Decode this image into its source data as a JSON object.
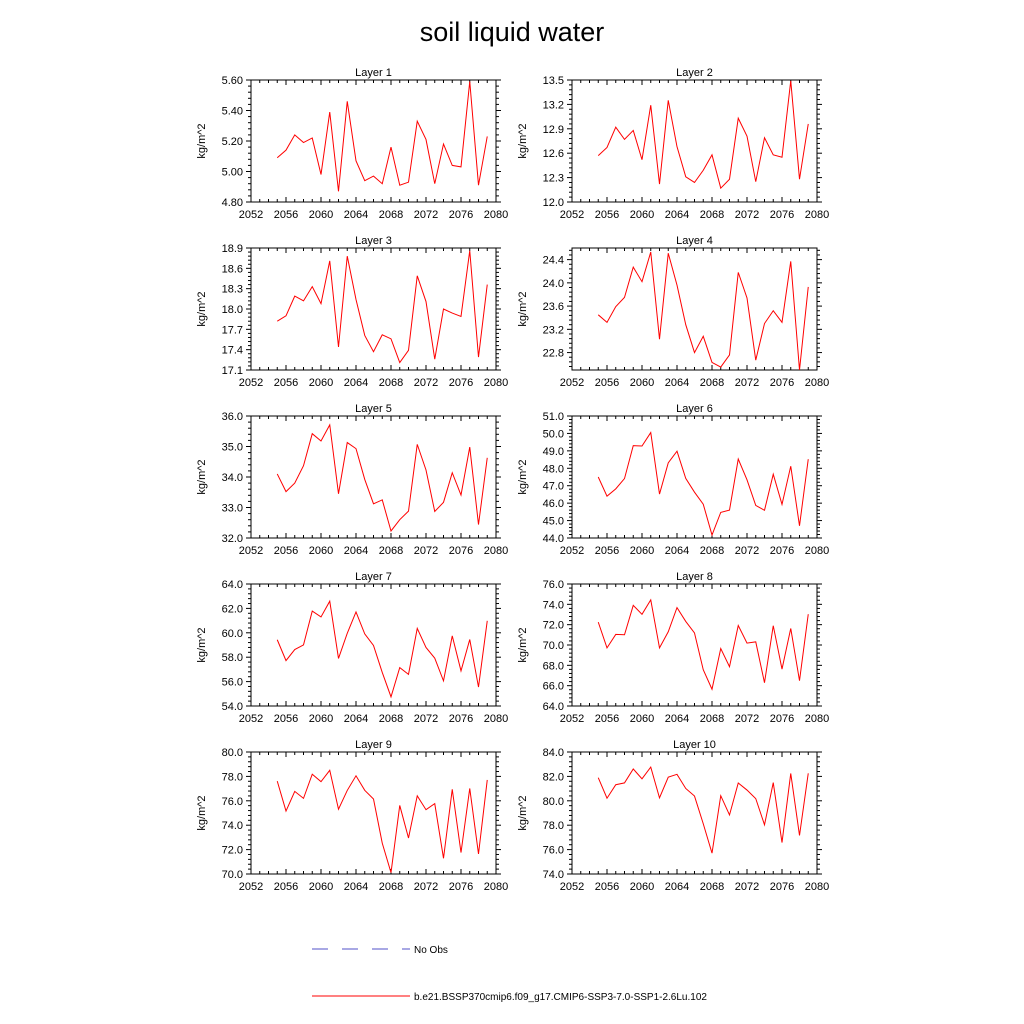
{
  "title": "soil liquid water",
  "legend": {
    "position": "bottom",
    "entries": [
      {
        "label": "No Obs",
        "color": "#5050c8",
        "style": "dashed"
      },
      {
        "label": "b.e21.BSSP370cmip6.f09_g17.CMIP6-SSP3-7.0-SSP1-2.6Lu.102",
        "color": "#ff0000",
        "style": "solid"
      }
    ]
  },
  "colors": {
    "series": "#ff0000",
    "axis": "#000000"
  },
  "chart_data": [
    {
      "type": "line",
      "title": "Layer 1",
      "ylabel": "kg/m^2",
      "xlim": [
        2052,
        2080
      ],
      "ylim": [
        4.8,
        5.6
      ],
      "xticks": [
        "2052",
        "2056",
        "2060",
        "2064",
        "2068",
        "2072",
        "2076",
        "2080"
      ],
      "yticks": [
        "4.80",
        "5.00",
        "5.20",
        "5.40",
        "5.60"
      ],
      "series": [
        {
          "x": [
            2055,
            2056,
            2057,
            2058,
            2059,
            2060,
            2061,
            2062,
            2063,
            2064,
            2065,
            2066,
            2067,
            2068,
            2069,
            2070,
            2071,
            2072,
            2073,
            2074,
            2075,
            2076,
            2077,
            2078,
            2079
          ],
          "y": [
            5.09,
            5.14,
            5.24,
            5.19,
            5.22,
            4.98,
            5.39,
            4.87,
            5.46,
            5.07,
            4.94,
            4.97,
            4.92,
            5.16,
            4.91,
            4.93,
            5.33,
            5.21,
            4.92,
            5.18,
            5.04,
            5.03,
            5.59,
            4.91,
            5.23
          ]
        }
      ]
    },
    {
      "type": "line",
      "title": "Layer 2",
      "ylabel": "kg/m^2",
      "xlim": [
        2052,
        2080
      ],
      "ylim": [
        12.0,
        13.5
      ],
      "xticks": [
        "2052",
        "2056",
        "2060",
        "2064",
        "2068",
        "2072",
        "2076",
        "2080"
      ],
      "yticks": [
        "12.0",
        "12.3",
        "12.6",
        "12.9",
        "13.2",
        "13.5"
      ],
      "series": [
        {
          "x": [
            2055,
            2056,
            2057,
            2058,
            2059,
            2060,
            2061,
            2062,
            2063,
            2064,
            2065,
            2066,
            2067,
            2068,
            2069,
            2070,
            2071,
            2072,
            2073,
            2074,
            2075,
            2076,
            2077,
            2078,
            2079
          ],
          "y": [
            12.57,
            12.67,
            12.92,
            12.77,
            12.88,
            12.52,
            13.19,
            12.22,
            13.25,
            12.68,
            12.31,
            12.24,
            12.39,
            12.58,
            12.17,
            12.28,
            13.03,
            12.81,
            12.25,
            12.79,
            12.58,
            12.55,
            13.49,
            12.28,
            12.96
          ]
        }
      ]
    },
    {
      "type": "line",
      "title": "Layer 3",
      "ylabel": "kg/m^2",
      "xlim": [
        2052,
        2080
      ],
      "ylim": [
        17.1,
        18.9
      ],
      "xticks": [
        "2052",
        "2056",
        "2060",
        "2064",
        "2068",
        "2072",
        "2076",
        "2080"
      ],
      "yticks": [
        "17.1",
        "17.4",
        "17.7",
        "18.0",
        "18.3",
        "18.6",
        "18.9"
      ],
      "series": [
        {
          "x": [
            2055,
            2056,
            2057,
            2058,
            2059,
            2060,
            2061,
            2062,
            2063,
            2064,
            2065,
            2066,
            2067,
            2068,
            2069,
            2070,
            2071,
            2072,
            2073,
            2074,
            2075,
            2076,
            2077,
            2078,
            2079
          ],
          "y": [
            17.82,
            17.9,
            18.19,
            18.12,
            18.33,
            18.08,
            18.71,
            17.44,
            18.78,
            18.14,
            17.61,
            17.37,
            17.62,
            17.56,
            17.21,
            17.39,
            18.49,
            18.11,
            17.26,
            18.0,
            17.94,
            17.89,
            18.86,
            17.29,
            18.36
          ]
        }
      ]
    },
    {
      "type": "line",
      "title": "Layer 4",
      "ylabel": "kg/m^2",
      "xlim": [
        2052,
        2080
      ],
      "ylim": [
        22.5,
        24.6
      ],
      "xticks": [
        "2052",
        "2056",
        "2060",
        "2064",
        "2068",
        "2072",
        "2076",
        "2080"
      ],
      "yticks": [
        "22.8",
        "23.2",
        "23.6",
        "24.0",
        "24.4"
      ],
      "series": [
        {
          "x": [
            2055,
            2056,
            2057,
            2058,
            2059,
            2060,
            2061,
            2062,
            2063,
            2064,
            2065,
            2066,
            2067,
            2068,
            2069,
            2070,
            2071,
            2072,
            2073,
            2074,
            2075,
            2076,
            2077,
            2078,
            2079
          ],
          "y": [
            23.45,
            23.32,
            23.59,
            23.75,
            24.27,
            24.02,
            24.53,
            23.03,
            24.51,
            23.96,
            23.28,
            22.8,
            23.08,
            22.63,
            22.55,
            22.76,
            24.18,
            23.74,
            22.67,
            23.3,
            23.52,
            23.32,
            24.37,
            22.5,
            23.93
          ]
        }
      ]
    },
    {
      "type": "line",
      "title": "Layer 5",
      "ylabel": "kg/m^2",
      "xlim": [
        2052,
        2080
      ],
      "ylim": [
        32.0,
        36.0
      ],
      "xticks": [
        "2052",
        "2056",
        "2060",
        "2064",
        "2068",
        "2072",
        "2076",
        "2080"
      ],
      "yticks": [
        "32.0",
        "33.0",
        "34.0",
        "35.0",
        "36.0"
      ],
      "series": [
        {
          "x": [
            2055,
            2056,
            2057,
            2058,
            2059,
            2060,
            2061,
            2062,
            2063,
            2064,
            2065,
            2066,
            2067,
            2068,
            2069,
            2070,
            2071,
            2072,
            2073,
            2074,
            2075,
            2076,
            2077,
            2078,
            2079
          ],
          "y": [
            34.1,
            33.52,
            33.8,
            34.37,
            35.42,
            35.18,
            35.71,
            33.45,
            35.13,
            34.93,
            33.92,
            33.12,
            33.25,
            32.23,
            32.6,
            32.88,
            35.07,
            34.23,
            32.87,
            33.17,
            34.14,
            33.41,
            34.98,
            32.44,
            34.63
          ]
        }
      ]
    },
    {
      "type": "line",
      "title": "Layer 6",
      "ylabel": "kg/m^2",
      "xlim": [
        2052,
        2080
      ],
      "ylim": [
        44.0,
        51.0
      ],
      "xticks": [
        "2052",
        "2056",
        "2060",
        "2064",
        "2068",
        "2072",
        "2076",
        "2080"
      ],
      "yticks": [
        "44.0",
        "45.0",
        "46.0",
        "47.0",
        "48.0",
        "49.0",
        "50.0",
        "51.0"
      ],
      "series": [
        {
          "x": [
            2055,
            2056,
            2057,
            2058,
            2059,
            2060,
            2061,
            2062,
            2063,
            2064,
            2065,
            2066,
            2067,
            2068,
            2069,
            2070,
            2071,
            2072,
            2073,
            2074,
            2075,
            2076,
            2077,
            2078,
            2079
          ],
          "y": [
            47.5,
            46.4,
            46.82,
            47.41,
            49.3,
            49.28,
            50.05,
            46.52,
            48.31,
            48.98,
            47.42,
            46.63,
            45.94,
            44.17,
            45.47,
            45.6,
            48.53,
            47.34,
            45.87,
            45.59,
            47.66,
            45.93,
            48.12,
            44.7,
            48.52
          ]
        }
      ]
    },
    {
      "type": "line",
      "title": "Layer 7",
      "ylabel": "kg/m^2",
      "xlim": [
        2052,
        2080
      ],
      "ylim": [
        54.0,
        64.0
      ],
      "xticks": [
        "2052",
        "2056",
        "2060",
        "2064",
        "2068",
        "2072",
        "2076",
        "2080"
      ],
      "yticks": [
        "54.0",
        "56.0",
        "58.0",
        "60.0",
        "62.0",
        "64.0"
      ],
      "series": [
        {
          "x": [
            2055,
            2056,
            2057,
            2058,
            2059,
            2060,
            2061,
            2062,
            2063,
            2064,
            2065,
            2066,
            2067,
            2068,
            2069,
            2070,
            2071,
            2072,
            2073,
            2074,
            2075,
            2076,
            2077,
            2078,
            2079
          ],
          "y": [
            59.43,
            57.72,
            58.63,
            59.01,
            61.78,
            61.3,
            62.59,
            57.9,
            59.96,
            61.71,
            59.91,
            58.96,
            56.75,
            54.75,
            57.15,
            56.59,
            60.36,
            58.8,
            57.92,
            56.06,
            59.75,
            56.88,
            59.45,
            55.55,
            60.98
          ]
        }
      ]
    },
    {
      "type": "line",
      "title": "Layer 8",
      "ylabel": "kg/m^2",
      "xlim": [
        2052,
        2080
      ],
      "ylim": [
        64.0,
        76.0
      ],
      "xticks": [
        "2052",
        "2056",
        "2060",
        "2064",
        "2068",
        "2072",
        "2076",
        "2080"
      ],
      "yticks": [
        "64.0",
        "66.0",
        "68.0",
        "70.0",
        "72.0",
        "74.0",
        "76.0"
      ],
      "series": [
        {
          "x": [
            2055,
            2056,
            2057,
            2058,
            2059,
            2060,
            2061,
            2062,
            2063,
            2064,
            2065,
            2066,
            2067,
            2068,
            2069,
            2070,
            2071,
            2072,
            2073,
            2074,
            2075,
            2076,
            2077,
            2078,
            2079
          ],
          "y": [
            72.25,
            69.72,
            71.04,
            71.01,
            73.9,
            73.02,
            74.44,
            69.72,
            71.3,
            73.68,
            72.32,
            71.18,
            67.57,
            65.65,
            69.65,
            67.86,
            71.92,
            70.19,
            70.31,
            66.29,
            71.9,
            67.63,
            71.63,
            66.49,
            73.03
          ]
        }
      ]
    },
    {
      "type": "line",
      "title": "Layer 9",
      "ylabel": "kg/m^2",
      "xlim": [
        2052,
        2080
      ],
      "ylim": [
        70.0,
        80.0
      ],
      "xticks": [
        "2052",
        "2056",
        "2060",
        "2064",
        "2068",
        "2072",
        "2076",
        "2080"
      ],
      "yticks": [
        "70.0",
        "72.0",
        "74.0",
        "76.0",
        "78.0",
        "80.0"
      ],
      "series": [
        {
          "x": [
            2055,
            2056,
            2057,
            2058,
            2059,
            2060,
            2061,
            2062,
            2063,
            2064,
            2065,
            2066,
            2067,
            2068,
            2069,
            2070,
            2071,
            2072,
            2073,
            2074,
            2075,
            2076,
            2077,
            2078,
            2079
          ],
          "y": [
            77.61,
            75.16,
            76.77,
            76.2,
            78.18,
            77.57,
            78.5,
            75.31,
            76.85,
            78.05,
            76.86,
            76.15,
            72.53,
            70.11,
            75.62,
            72.95,
            76.41,
            75.27,
            75.77,
            71.29,
            76.94,
            71.76,
            77.01,
            71.64,
            77.71
          ]
        }
      ]
    },
    {
      "type": "line",
      "title": "Layer 10",
      "ylabel": "kg/m^2",
      "xlim": [
        2052,
        2080
      ],
      "ylim": [
        74.0,
        84.0
      ],
      "xticks": [
        "2052",
        "2056",
        "2060",
        "2064",
        "2068",
        "2072",
        "2076",
        "2080"
      ],
      "yticks": [
        "74.0",
        "76.0",
        "78.0",
        "80.0",
        "82.0",
        "84.0"
      ],
      "series": [
        {
          "x": [
            2055,
            2056,
            2057,
            2058,
            2059,
            2060,
            2061,
            2062,
            2063,
            2064,
            2065,
            2066,
            2067,
            2068,
            2069,
            2070,
            2071,
            2072,
            2073,
            2074,
            2075,
            2076,
            2077,
            2078,
            2079
          ],
          "y": [
            81.89,
            80.21,
            81.32,
            81.47,
            82.61,
            81.8,
            82.76,
            80.24,
            81.94,
            82.17,
            81.01,
            80.39,
            78.12,
            75.71,
            80.42,
            78.84,
            81.46,
            80.88,
            80.18,
            78.03,
            81.49,
            76.58,
            82.24,
            77.16,
            82.25
          ]
        }
      ]
    }
  ]
}
